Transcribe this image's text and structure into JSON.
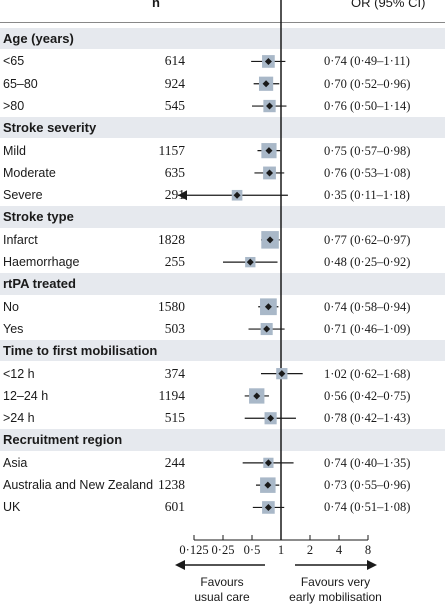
{
  "chart_data": {
    "type": "forest",
    "header": {
      "n": "n",
      "or": "OR (95% CI)"
    },
    "x_scale": "log2",
    "xlim": [
      0.125,
      8
    ],
    "x_ticks": [
      {
        "value": 0.125,
        "label": "0·125"
      },
      {
        "value": 0.25,
        "label": "0·25"
      },
      {
        "value": 0.5,
        "label": "0·5"
      },
      {
        "value": 1,
        "label": "1"
      },
      {
        "value": 2,
        "label": "2"
      },
      {
        "value": 4,
        "label": "4"
      },
      {
        "value": 8,
        "label": "8"
      }
    ],
    "reference_line": 1,
    "favours_left": [
      "Favours",
      "usual care"
    ],
    "favours_right": [
      "Favours very",
      "early mobilisation"
    ],
    "groups": [
      {
        "title": "Age (years)",
        "rows": [
          {
            "label": "<65",
            "n": "614",
            "or": 0.74,
            "lo": 0.49,
            "hi": 1.11,
            "or_text": "0·74 (0·49–1·11)"
          },
          {
            "label": "65–80",
            "n": "924",
            "or": 0.7,
            "lo": 0.52,
            "hi": 0.96,
            "or_text": "0·70 (0·52–0·96)"
          },
          {
            "label": ">80",
            "n": "545",
            "or": 0.76,
            "lo": 0.5,
            "hi": 1.14,
            "or_text": "0·76 (0·50–1·14)"
          }
        ]
      },
      {
        "title": "Stroke severity",
        "rows": [
          {
            "label": "Mild",
            "n": "1157",
            "or": 0.75,
            "lo": 0.57,
            "hi": 0.98,
            "or_text": "0·75 (0·57–0·98)"
          },
          {
            "label": "Moderate",
            "n": "635",
            "or": 0.76,
            "lo": 0.53,
            "hi": 1.08,
            "or_text": "0·76 (0·53–1·08)"
          },
          {
            "label": "Severe",
            "n": "291",
            "or": 0.35,
            "lo": 0.11,
            "hi": 1.18,
            "or_text": "0·35 (0·11–1·18)"
          }
        ]
      },
      {
        "title": "Stroke type",
        "rows": [
          {
            "label": "Infarct",
            "n": "1828",
            "or": 0.77,
            "lo": 0.62,
            "hi": 0.97,
            "or_text": "0·77 (0·62–0·97)"
          },
          {
            "label": "Haemorrhage",
            "n": "255",
            "or": 0.48,
            "lo": 0.25,
            "hi": 0.92,
            "or_text": "0·48 (0·25–0·92)"
          }
        ]
      },
      {
        "title": "rtPA treated",
        "rows": [
          {
            "label": "No",
            "n": "1580",
            "or": 0.74,
            "lo": 0.58,
            "hi": 0.94,
            "or_text": "0·74 (0·58–0·94)"
          },
          {
            "label": "Yes",
            "n": "503",
            "or": 0.71,
            "lo": 0.46,
            "hi": 1.09,
            "or_text": "0·71 (0·46–1·09)"
          }
        ]
      },
      {
        "title": "Time to first mobilisation",
        "rows": [
          {
            "label": "<12 h",
            "n": "374",
            "or": 1.02,
            "lo": 0.62,
            "hi": 1.68,
            "or_text": "1·02 (0·62–1·68)"
          },
          {
            "label": "12–24 h",
            "n": "1194",
            "or": 0.56,
            "lo": 0.42,
            "hi": 0.75,
            "or_text": "0·56 (0·42–0·75)"
          },
          {
            "label": ">24 h",
            "n": "515",
            "or": 0.78,
            "lo": 0.42,
            "hi": 1.43,
            "or_text": "0·78 (0·42–1·43)"
          }
        ]
      },
      {
        "title": "Recruitment region",
        "rows": [
          {
            "label": "Asia",
            "n": "244",
            "or": 0.74,
            "lo": 0.4,
            "hi": 1.35,
            "or_text": "0·74 (0·40–1·35)"
          },
          {
            "label": "Australia and New Zealand",
            "n": "1238",
            "or": 0.73,
            "lo": 0.55,
            "hi": 0.96,
            "or_text": "0·73 (0·55–0·96)"
          },
          {
            "label": "UK",
            "n": "601",
            "or": 0.74,
            "lo": 0.51,
            "hi": 1.08,
            "or_text": "0·74 (0·51–1·08)"
          }
        ]
      }
    ],
    "colors": {
      "band": "#e6e9ee",
      "box": "#a9b8c8",
      "ink": "#1a1a1a"
    }
  }
}
